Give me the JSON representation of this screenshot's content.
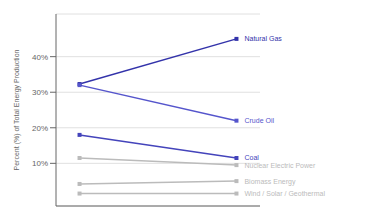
{
  "chart_data": {
    "type": "line",
    "ylabel": "Percent (%) of Total Energy Production",
    "x": [
      0,
      1
    ],
    "xlim": [
      -0.15,
      1.15
    ],
    "ylim": [
      -2,
      52
    ],
    "yticks": [
      {
        "value": 10,
        "label": "10%"
      },
      {
        "value": 20,
        "label": "20%"
      },
      {
        "value": 30,
        "label": "30%"
      },
      {
        "value": 40,
        "label": "40%"
      }
    ],
    "grid": true,
    "marker": "square",
    "tick_labels": "y",
    "series": [
      {
        "name": "Natural Gas",
        "color": "#3333aa",
        "values": [
          32.3,
          45.0
        ]
      },
      {
        "name": "Crude Oil",
        "color": "#5555cc",
        "values": [
          32.0,
          22.0
        ]
      },
      {
        "name": "Coal",
        "color": "#4444bb",
        "values": [
          18.0,
          11.5
        ]
      },
      {
        "name": "Nuclear Electric Power",
        "color": "#bbbbbb",
        "values": [
          11.5,
          9.5
        ]
      },
      {
        "name": "Biomass Energy",
        "color": "#bbbbbb",
        "values": [
          4.2,
          5.0
        ]
      },
      {
        "name": "Wind / Solar / Geothermal",
        "color": "#bbbbbb",
        "values": [
          1.5,
          1.5
        ]
      }
    ]
  }
}
